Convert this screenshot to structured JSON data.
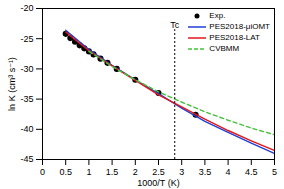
{
  "chart_data": {
    "type": "line",
    "x_label": "1000/T (K)",
    "y_label": "ln K (cm³ s⁻¹)",
    "xlim": [
      0,
      5
    ],
    "ylim": [
      -45,
      -20
    ],
    "xticks": [
      0,
      0.5,
      1,
      1.5,
      2,
      2.5,
      3,
      3.5,
      4,
      4.5,
      5
    ],
    "yticks": [
      -45,
      -40,
      -35,
      -30,
      -25,
      -20
    ],
    "legend": "top-right",
    "series": [
      {
        "name": "Exp.",
        "type": "scatter",
        "marker": "circle",
        "color": "#000000",
        "x": [
          0.5,
          0.6,
          0.7,
          0.8,
          0.9,
          1.0,
          1.1,
          1.25,
          1.4,
          1.6,
          2.0,
          2.5,
          3.3
        ],
        "values": [
          -24.2,
          -24.9,
          -25.5,
          -26.1,
          -26.6,
          -27.1,
          -27.6,
          -28.3,
          -29.0,
          -30.0,
          -31.8,
          -34.0,
          -37.6
        ]
      },
      {
        "name": "PES2018-μiOMT",
        "type": "line",
        "line_style": "solid",
        "color": "#1f3fd6",
        "x": [
          0.5,
          1,
          1.5,
          2,
          2.5,
          3,
          3.5,
          4,
          4.5,
          5
        ],
        "values": [
          -23.6,
          -26.8,
          -29.4,
          -31.8,
          -34.1,
          -36.5,
          -38.7,
          -40.5,
          -42.3,
          -44.0
        ]
      },
      {
        "name": "PES2018-LAT",
        "type": "line",
        "line_style": "solid",
        "color": "#e0181b",
        "x": [
          0.5,
          1,
          1.5,
          2,
          2.5,
          3,
          3.5,
          4,
          4.5,
          5
        ],
        "values": [
          -23.9,
          -27.0,
          -29.5,
          -31.9,
          -34.3,
          -36.3,
          -38.3,
          -40.2,
          -41.9,
          -43.5
        ]
      },
      {
        "name": "CVBMM",
        "type": "line",
        "line_style": "dashed",
        "color": "#44c23a",
        "x": [
          1.0,
          1.5,
          2,
          2.5,
          3,
          3.5,
          4,
          4.5,
          5
        ],
        "values": [
          -27.1,
          -29.6,
          -31.8,
          -33.8,
          -35.5,
          -37.1,
          -38.5,
          -39.8,
          -40.9
        ]
      }
    ],
    "annotations": [
      {
        "text": "Tc",
        "x": 2.85,
        "y": -23.5
      }
    ]
  }
}
